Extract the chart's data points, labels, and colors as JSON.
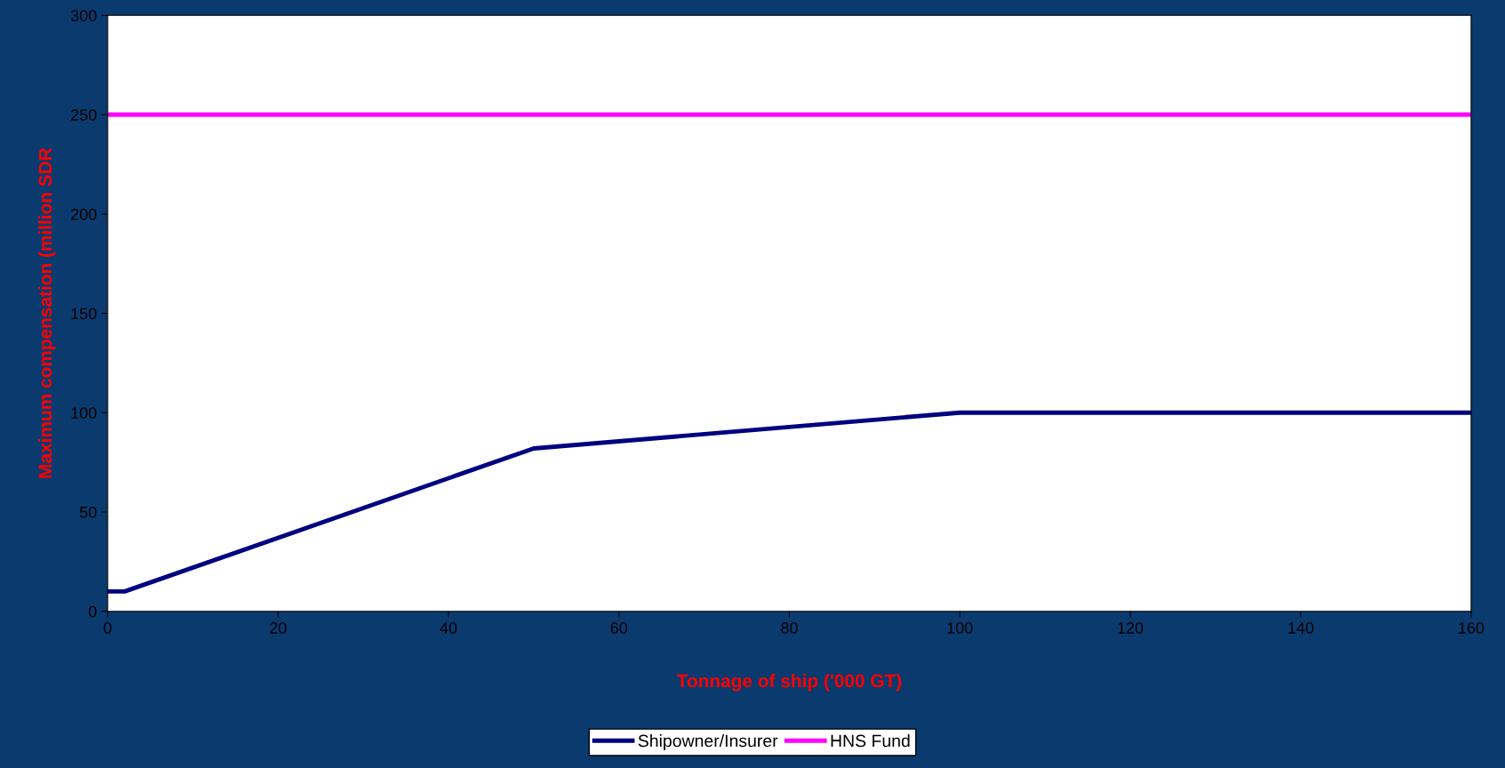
{
  "chart_data": {
    "type": "line",
    "xlabel": "Tonnage of ship ('000 GT)",
    "ylabel": "Maximum compensation (million SDR",
    "series": [
      {
        "name": "Shipowner/Insurer",
        "color": "#000080",
        "x": [
          0,
          2,
          50,
          100,
          160
        ],
        "values": [
          10,
          10,
          82,
          100,
          100
        ]
      },
      {
        "name": "HNS Fund",
        "color": "#ff00ff",
        "x": [
          0,
          160
        ],
        "values": [
          250,
          250
        ]
      }
    ],
    "xlim": [
      0,
      160
    ],
    "xticks": [
      0,
      20,
      40,
      60,
      80,
      100,
      120,
      140,
      160
    ],
    "ylim": [
      0,
      300
    ],
    "yticks": [
      0,
      50,
      100,
      150,
      200,
      250,
      300
    ],
    "grid": false,
    "legend": "bottom",
    "marker": "none",
    "line_style": "solid"
  }
}
